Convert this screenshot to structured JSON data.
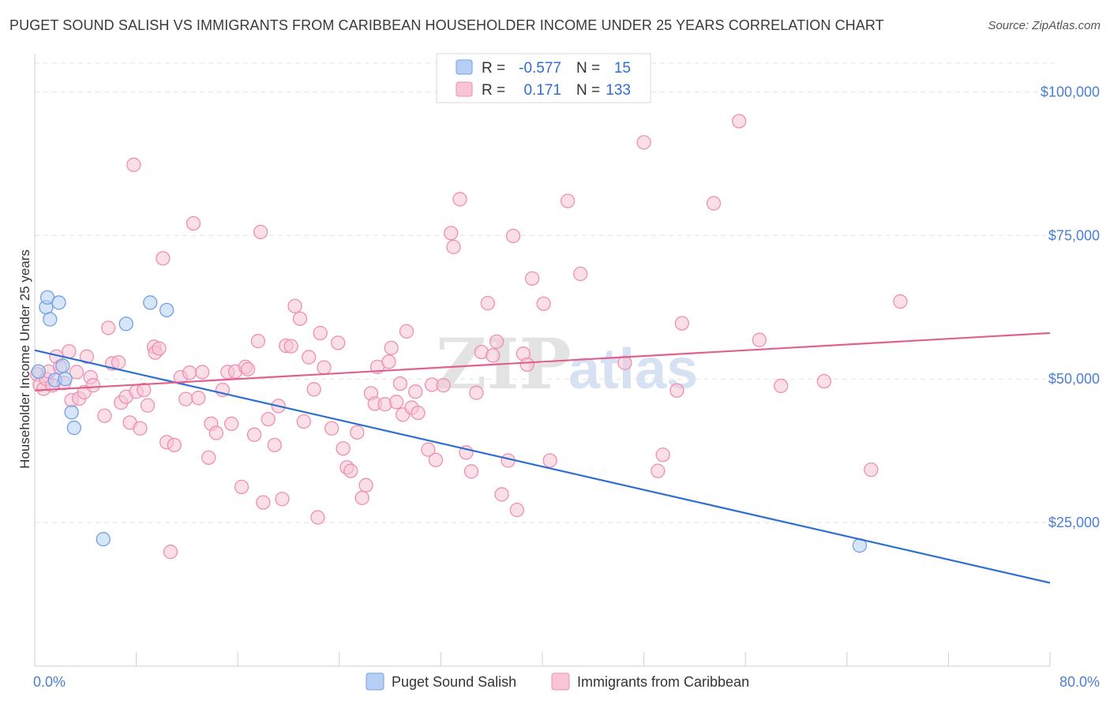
{
  "title": "PUGET SOUND SALISH VS IMMIGRANTS FROM CARIBBEAN HOUSEHOLDER INCOME UNDER 25 YEARS CORRELATION CHART",
  "source": "Source: ZipAtlas.com",
  "watermark": "ZIPatlas",
  "chart_data": {
    "type": "scatter",
    "ylabel": "Householder Income Under 25 years",
    "xlim": [
      0,
      80
    ],
    "ylim": [
      0,
      105000
    ],
    "x_tick_labels": [
      "0.0%",
      "80.0%"
    ],
    "y_ticks": [
      25000,
      50000,
      75000,
      100000
    ],
    "y_tick_labels": [
      "$25,000",
      "$50,000",
      "$75,000",
      "$100,000"
    ],
    "grid": true,
    "legend_position": "top-center",
    "stats": [
      {
        "r_label": "R =",
        "r_value": "-0.577",
        "n_label": "N =",
        "n_value": "15"
      },
      {
        "r_label": "R =",
        "r_value": "0.171",
        "n_label": "N =",
        "n_value": "133"
      }
    ],
    "series": [
      {
        "name": "Puget Sound Salish",
        "color": "#6fa0e6",
        "fill": "#b7cff4",
        "line_color": "#2f6fd0",
        "trend": {
          "x": [
            0,
            80
          ],
          "y": [
            55000,
            14500
          ]
        },
        "points": [
          [
            0.3,
            51300
          ],
          [
            0.9,
            62500
          ],
          [
            1.0,
            64200
          ],
          [
            1.2,
            60400
          ],
          [
            1.6,
            49800
          ],
          [
            1.9,
            63300
          ],
          [
            2.2,
            52300
          ],
          [
            2.4,
            50000
          ],
          [
            2.9,
            44200
          ],
          [
            3.1,
            41500
          ],
          [
            5.4,
            22100
          ],
          [
            7.2,
            59600
          ],
          [
            9.1,
            63300
          ],
          [
            10.4,
            62000
          ],
          [
            65.0,
            21000
          ]
        ]
      },
      {
        "name": "Immigrants from Caribbean",
        "color": "#ee8fb0",
        "fill": "#f8c4d6",
        "line_color": "#e0608f",
        "trend": {
          "x": [
            0,
            80
          ],
          "y": [
            48000,
            58000
          ]
        },
        "points": [
          [
            0.2,
            50800
          ],
          [
            0.4,
            49000
          ],
          [
            0.7,
            48300
          ],
          [
            0.9,
            50000
          ],
          [
            1.1,
            51300
          ],
          [
            1.4,
            48900
          ],
          [
            1.7,
            53900
          ],
          [
            2.0,
            52100
          ],
          [
            2.3,
            49300
          ],
          [
            2.7,
            54800
          ],
          [
            2.9,
            46300
          ],
          [
            3.3,
            51200
          ],
          [
            3.5,
            46600
          ],
          [
            3.9,
            47700
          ],
          [
            4.1,
            53900
          ],
          [
            4.4,
            50300
          ],
          [
            4.6,
            48900
          ],
          [
            5.5,
            43600
          ],
          [
            5.8,
            58900
          ],
          [
            6.1,
            52700
          ],
          [
            6.6,
            52900
          ],
          [
            6.8,
            45900
          ],
          [
            7.2,
            46900
          ],
          [
            7.5,
            42400
          ],
          [
            7.8,
            87300
          ],
          [
            8.0,
            47800
          ],
          [
            8.3,
            41400
          ],
          [
            8.6,
            48100
          ],
          [
            8.9,
            45400
          ],
          [
            9.4,
            55600
          ],
          [
            9.5,
            54600
          ],
          [
            9.8,
            55300
          ],
          [
            10.1,
            71000
          ],
          [
            10.4,
            39000
          ],
          [
            10.7,
            19900
          ],
          [
            11.0,
            38500
          ],
          [
            11.5,
            50300
          ],
          [
            11.9,
            46500
          ],
          [
            12.2,
            51100
          ],
          [
            12.5,
            77100
          ],
          [
            12.9,
            46700
          ],
          [
            13.2,
            51200
          ],
          [
            13.7,
            36300
          ],
          [
            13.9,
            42200
          ],
          [
            14.3,
            40600
          ],
          [
            14.8,
            48100
          ],
          [
            15.2,
            51200
          ],
          [
            15.5,
            42200
          ],
          [
            15.8,
            51300
          ],
          [
            16.3,
            31200
          ],
          [
            16.6,
            52100
          ],
          [
            16.8,
            51700
          ],
          [
            17.3,
            40300
          ],
          [
            17.6,
            56600
          ],
          [
            17.8,
            75600
          ],
          [
            18.0,
            28500
          ],
          [
            18.4,
            43000
          ],
          [
            18.9,
            38500
          ],
          [
            19.2,
            45300
          ],
          [
            19.5,
            29100
          ],
          [
            19.8,
            55800
          ],
          [
            20.2,
            55700
          ],
          [
            20.5,
            62700
          ],
          [
            20.9,
            60500
          ],
          [
            21.2,
            42600
          ],
          [
            21.6,
            53800
          ],
          [
            22.0,
            48200
          ],
          [
            22.3,
            25900
          ],
          [
            22.5,
            58000
          ],
          [
            22.8,
            52000
          ],
          [
            23.4,
            41400
          ],
          [
            23.9,
            56300
          ],
          [
            24.3,
            37900
          ],
          [
            24.6,
            34600
          ],
          [
            24.9,
            34000
          ],
          [
            25.4,
            40700
          ],
          [
            25.8,
            29300
          ],
          [
            26.1,
            31500
          ],
          [
            26.5,
            47500
          ],
          [
            26.8,
            45700
          ],
          [
            27.0,
            52100
          ],
          [
            27.6,
            45600
          ],
          [
            27.9,
            53000
          ],
          [
            28.1,
            55400
          ],
          [
            28.5,
            46000
          ],
          [
            28.8,
            49200
          ],
          [
            29.0,
            43800
          ],
          [
            29.3,
            58300
          ],
          [
            29.7,
            45000
          ],
          [
            30.0,
            47800
          ],
          [
            30.2,
            44100
          ],
          [
            31.0,
            37700
          ],
          [
            31.3,
            49000
          ],
          [
            31.6,
            35900
          ],
          [
            32.2,
            48900
          ],
          [
            32.8,
            75400
          ],
          [
            33.0,
            73000
          ],
          [
            33.5,
            81300
          ],
          [
            34.0,
            37200
          ],
          [
            34.4,
            33900
          ],
          [
            34.8,
            47600
          ],
          [
            35.2,
            54700
          ],
          [
            35.7,
            63200
          ],
          [
            36.1,
            54100
          ],
          [
            36.4,
            56500
          ],
          [
            36.8,
            29900
          ],
          [
            37.3,
            35800
          ],
          [
            37.7,
            74900
          ],
          [
            38.0,
            27200
          ],
          [
            38.5,
            54400
          ],
          [
            38.8,
            52500
          ],
          [
            39.2,
            67500
          ],
          [
            40.1,
            63100
          ],
          [
            40.6,
            35800
          ],
          [
            42.0,
            81000
          ],
          [
            43.0,
            68300
          ],
          [
            46.5,
            52800
          ],
          [
            48.0,
            91200
          ],
          [
            49.1,
            34000
          ],
          [
            49.5,
            36800
          ],
          [
            50.6,
            48000
          ],
          [
            51.0,
            59700
          ],
          [
            53.5,
            80600
          ],
          [
            55.5,
            94900
          ],
          [
            57.1,
            56800
          ],
          [
            58.8,
            48800
          ],
          [
            62.2,
            49600
          ],
          [
            65.9,
            34200
          ],
          [
            68.2,
            63500
          ]
        ]
      }
    ]
  },
  "legend": {
    "items": [
      {
        "label": "Puget Sound Salish"
      },
      {
        "label": "Immigrants from Caribbean"
      }
    ]
  }
}
